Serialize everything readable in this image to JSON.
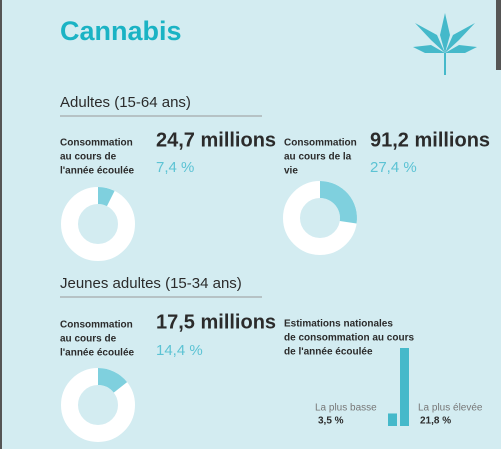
{
  "title": "Cannabis",
  "sections": [
    {
      "heading": "Adultes (15-64 ans)",
      "items": [
        {
          "label": [
            "Consommation",
            "au cours de",
            "l'année écoulée"
          ],
          "count": "24,7 millions",
          "share": {
            "value": 7.4,
            "label": "7,4 %"
          }
        },
        {
          "label": [
            "Consommation",
            "au cours de la",
            "vie"
          ],
          "count": "91,2 millions",
          "share": {
            "value": 27.4,
            "label": "27,4 %"
          }
        }
      ]
    },
    {
      "heading": "Jeunes adultes (15-34 ans)",
      "items": [
        {
          "label": [
            "Consommation",
            "au cours de",
            "l'année écoulée"
          ],
          "count": "17,5 millions",
          "share": {
            "value": 14.4,
            "label": "14,4 %"
          }
        }
      ],
      "estimates": {
        "label": [
          "Estimations nationales",
          "de consommation au cours",
          "de l'année écoulée"
        ],
        "low": {
          "name": "La plus basse",
          "value": 3.5,
          "label": "3,5 %"
        },
        "high": {
          "name": "La plus élevée",
          "value": 21.8,
          "label": "21,8 %"
        }
      }
    }
  ]
}
